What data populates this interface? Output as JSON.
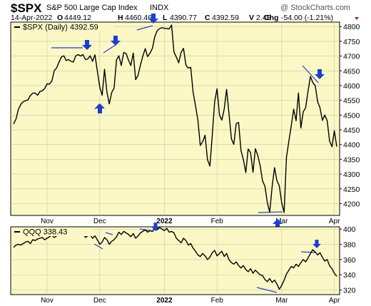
{
  "header": {
    "symbol": "$SPX",
    "name": "S&P 500 Large Cap Index",
    "type": "INDX",
    "date": "14-Apr-2022",
    "ohlc": [
      {
        "label": "O",
        "value": "4449.12"
      },
      {
        "label": "H",
        "value": "4460.46"
      },
      {
        "label": "L",
        "value": "4390.77"
      },
      {
        "label": "C",
        "value": "4392.59"
      },
      {
        "label": "V",
        "value": "2.4B"
      }
    ],
    "chg_label": "Chg",
    "chg_value": "-54.00 (-1.21%)",
    "watermark": "@ StockCharts.com"
  },
  "colors": {
    "panel_bg": "#fbf8c6",
    "line": "#000000",
    "trendline": "#2b3ecf",
    "arrow": "#1a3fd1",
    "grid": "#c9c6a6",
    "chg_marker": "#8b1a8b"
  },
  "chart_data": [
    {
      "type": "line",
      "title": "$SPX (Daily) 4392.59",
      "ylim": [
        4160,
        4815
      ],
      "y_ticks": [
        "4200",
        "4250",
        "4300",
        "4350",
        "4400",
        "4450",
        "4500",
        "4550",
        "4600",
        "4650",
        "4700",
        "4750",
        "4800"
      ],
      "x_tick_labels": [
        "Nov",
        "Dec",
        "2022",
        "Feb",
        "Mar",
        "Apr"
      ],
      "y_axis": "right",
      "series": [
        {
          "name": "$SPX",
          "values": [
            4470,
            4486,
            4519,
            4536,
            4545,
            4549,
            4551,
            4566,
            4574,
            4575,
            4567,
            4580,
            4582,
            4590,
            4606,
            4605,
            4615,
            4650,
            4660,
            4680,
            4697,
            4701,
            4685,
            4688,
            4682,
            4680,
            4701,
            4705,
            4700,
            4705,
            4688,
            4690,
            4701,
            4682,
            4704,
            4650,
            4595,
            4567,
            4655,
            4577,
            4538,
            4577,
            4591,
            4687,
            4701,
            4668,
            4712,
            4709,
            4686,
            4668,
            4710,
            4620,
            4635,
            4669,
            4700,
            4725,
            4698,
            4710,
            4726,
            4766,
            4786,
            4793,
            4796,
            4794,
            4793,
            4792,
            4805,
            4714,
            4696,
            4677,
            4713,
            4726,
            4669,
            4659,
            4662,
            4577,
            4532,
            4482,
            4397,
            4410,
            4432,
            4349,
            4327,
            4431,
            4546,
            4589,
            4500,
            4483,
            4521,
            4587,
            4504,
            4419,
            4401,
            4471,
            4475,
            4380,
            4349,
            4305,
            4385,
            4373,
            4306,
            4386,
            4363,
            4329,
            4277,
            4259,
            4204,
            4171,
            4257,
            4322,
            4278,
            4260,
            4204,
            4170,
            4357,
            4412,
            4463,
            4520,
            4481,
            4575,
            4456,
            4511,
            4525,
            4580,
            4631,
            4610,
            4600,
            4545,
            4525,
            4482,
            4500,
            4481,
            4412,
            4393,
            4447,
            4393
          ]
        }
      ]
    },
    {
      "type": "line",
      "title": "QQQ 338.43",
      "ylim": [
        314,
        403
      ],
      "y_ticks": [
        "320",
        "340",
        "360",
        "380",
        "400"
      ],
      "x_tick_labels": [
        "Nov",
        "Dec",
        "2022",
        "Feb",
        "Mar",
        "Apr"
      ],
      "y_axis": "right",
      "series": [
        {
          "name": "QQQ",
          "values": [
            376,
            379,
            380,
            379,
            381,
            383,
            384,
            381,
            386,
            385,
            387,
            388,
            389,
            386,
            388,
            390,
            392,
            389,
            391,
            394,
            393,
            396,
            395,
            397,
            396,
            398,
            397,
            393,
            396,
            394,
            389,
            391,
            393,
            388,
            391,
            386,
            380,
            383,
            389,
            386,
            380,
            384,
            386,
            390,
            396,
            393,
            397,
            395,
            393,
            390,
            394,
            388,
            391,
            395,
            397,
            399,
            396,
            398,
            397,
            401,
            399,
            402,
            400,
            398,
            401,
            396,
            397,
            395,
            388,
            385,
            382,
            388,
            385,
            379,
            381,
            375,
            371,
            366,
            364,
            368,
            365,
            360,
            363,
            369,
            372,
            365,
            368,
            371,
            364,
            368,
            360,
            356,
            354,
            357,
            352,
            349,
            352,
            347,
            344,
            348,
            342,
            346,
            343,
            340,
            339,
            334,
            331,
            335,
            330,
            333,
            328,
            321,
            326,
            333,
            341,
            346,
            351,
            349,
            354,
            351,
            356,
            360,
            357,
            362,
            368,
            373,
            370,
            366,
            369,
            363,
            358,
            360,
            352,
            348,
            342,
            338
          ]
        }
      ]
    }
  ]
}
